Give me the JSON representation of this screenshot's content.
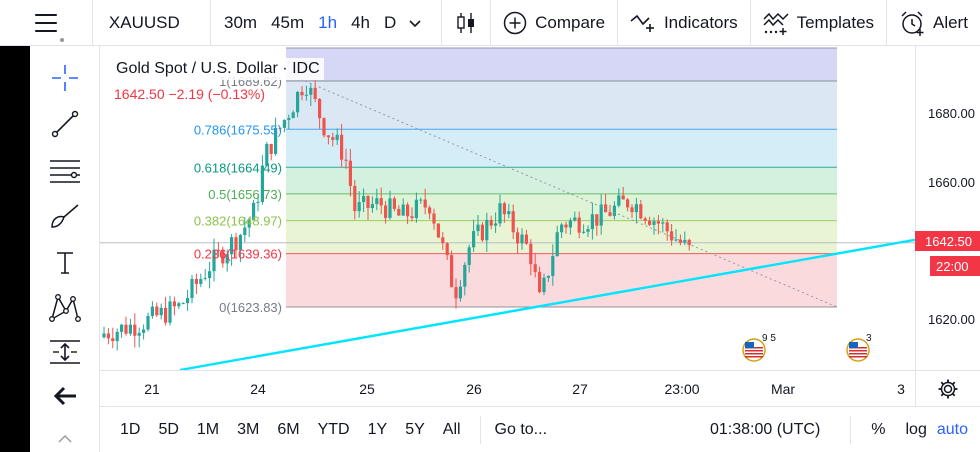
{
  "toolbar": {
    "symbol": "XAUUSD",
    "timeframes": [
      "30m",
      "45m",
      "1h",
      "4h",
      "D"
    ],
    "active_timeframe": "1h",
    "compare_label": "Compare",
    "indicators_label": "Indicators",
    "templates_label": "Templates",
    "alert_label": "Alert"
  },
  "legend": {
    "title": "Gold Spot / U.S. Dollar · IDC",
    "ohlc": "1642.50  −2.19 (−0.13%)"
  },
  "fib_levels": [
    {
      "label": "1(1689.62)",
      "price": 1689.62,
      "color": "#787b86"
    },
    {
      "label": "0.786(1675.55)",
      "price": 1675.55,
      "color": "#2196f3"
    },
    {
      "label": "0.618(1664.49)",
      "price": 1664.49,
      "color": "#089981"
    },
    {
      "label": "0.5(1656.73)",
      "price": 1656.73,
      "color": "#4caf50"
    },
    {
      "label": "0.382(1648.97)",
      "price": 1648.97,
      "color": "#8bc34a"
    },
    {
      "label": "0.236(1639.36)",
      "price": 1639.36,
      "color": "#f23645"
    },
    {
      "label": "0(1623.83)",
      "price": 1623.83,
      "color": "#787b86"
    }
  ],
  "price_axis": {
    "labels": [
      "1680.00",
      "1660.00",
      "1620.00"
    ],
    "values": [
      1680,
      1660,
      1620
    ],
    "last_price": "1642.50",
    "countdown": "22:00"
  },
  "time_axis": {
    "labels": [
      "21",
      "24",
      "25",
      "26",
      "27",
      "23:00",
      "Mar",
      "3"
    ]
  },
  "bottombar": {
    "ranges": [
      "1D",
      "5D",
      "1M",
      "3M",
      "6M",
      "YTD",
      "1Y",
      "5Y",
      "All"
    ],
    "goto_label": "Go to...",
    "clock": "01:38:00 (UTC)",
    "percent_label": "%",
    "log_label": "log",
    "auto_label": "auto"
  },
  "events": [
    {
      "flag": "us-flag-icon",
      "count": "9 5"
    },
    {
      "flag": "us-flag-icon",
      "count": "3"
    }
  ],
  "colors": {
    "up": "#26a69a",
    "down": "#ef5350",
    "trendline": "#00e5ff",
    "accent": "#2962ff"
  }
}
